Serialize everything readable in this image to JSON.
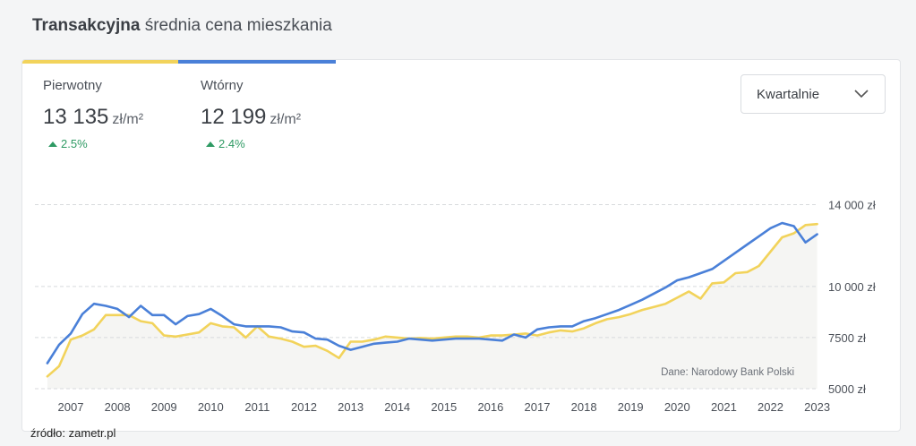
{
  "header": {
    "title_bold": "Transakcyjna",
    "title_rest": "średnia cena mieszkania"
  },
  "stats": [
    {
      "label": "Pierwotny",
      "value": "13 135",
      "unit": "zł/m²",
      "change": "2.5%",
      "color": "#f2d35b"
    },
    {
      "label": "Wtórny",
      "value": "12 199",
      "unit": "zł/m²",
      "change": "2.4%",
      "color": "#4a80d8"
    }
  ],
  "dropdown": {
    "selected": "Kwartalnie"
  },
  "source_note": "źródło: zametr.pl",
  "chart_data": {
    "type": "line",
    "annotation": "Dane: Narodowy Bank Polski",
    "x_tick_labels": [
      "2007",
      "2008",
      "2009",
      "2010",
      "2011",
      "2012",
      "2013",
      "2014",
      "2015",
      "2016",
      "2017",
      "2018",
      "2019",
      "2020",
      "2021",
      "2022",
      "2023"
    ],
    "y_ticks": [
      5000,
      7500,
      10000,
      14000
    ],
    "y_tick_labels": [
      "5000 zł",
      "7500 zł",
      "10 000 zł",
      "14 000 zł"
    ],
    "ylim": [
      5000,
      14000
    ],
    "grid": true,
    "series": [
      {
        "name": "Pierwotny",
        "color": "#f2d35b",
        "x": [
          2006.5,
          2006.75,
          2007,
          2007.25,
          2007.5,
          2007.75,
          2008,
          2008.25,
          2008.5,
          2008.75,
          2009,
          2009.25,
          2009.5,
          2009.75,
          2010,
          2010.25,
          2010.5,
          2010.75,
          2011,
          2011.25,
          2011.5,
          2011.75,
          2012,
          2012.25,
          2012.5,
          2012.75,
          2013,
          2013.25,
          2013.5,
          2013.75,
          2014,
          2014.25,
          2014.5,
          2014.75,
          2015,
          2015.25,
          2015.5,
          2015.75,
          2016,
          2016.25,
          2016.5,
          2016.75,
          2017,
          2017.25,
          2017.5,
          2017.75,
          2018,
          2018.25,
          2018.5,
          2018.75,
          2019,
          2019.25,
          2019.5,
          2019.75,
          2020,
          2020.25,
          2020.5,
          2020.75,
          2021,
          2021.25,
          2021.5,
          2021.75,
          2022,
          2022.25,
          2022.5,
          2022.75,
          2023
        ],
        "values": [
          5600,
          6100,
          7400,
          7600,
          7900,
          8600,
          8600,
          8600,
          8300,
          8200,
          7600,
          7550,
          7650,
          7750,
          8200,
          8050,
          8000,
          7500,
          8050,
          7550,
          7450,
          7300,
          7050,
          7100,
          6850,
          6500,
          7300,
          7300,
          7400,
          7550,
          7500,
          7450,
          7480,
          7450,
          7500,
          7550,
          7550,
          7500,
          7600,
          7600,
          7650,
          7700,
          7600,
          7750,
          7850,
          7800,
          7950,
          8200,
          8400,
          8500,
          8650,
          8850,
          9000,
          9150,
          9450,
          9750,
          9400,
          10150,
          10200,
          10650,
          10700,
          11000,
          11700,
          12400,
          12600,
          13000,
          13050
        ]
      },
      {
        "name": "Wtórny",
        "color": "#4a80d8",
        "x": [
          2006.5,
          2006.75,
          2007,
          2007.25,
          2007.5,
          2007.75,
          2008,
          2008.25,
          2008.5,
          2008.75,
          2009,
          2009.25,
          2009.5,
          2009.75,
          2010,
          2010.25,
          2010.5,
          2010.75,
          2011,
          2011.25,
          2011.5,
          2011.75,
          2012,
          2012.25,
          2012.5,
          2012.75,
          2013,
          2013.25,
          2013.5,
          2013.75,
          2014,
          2014.25,
          2014.5,
          2014.75,
          2015,
          2015.25,
          2015.5,
          2015.75,
          2016,
          2016.25,
          2016.5,
          2016.75,
          2017,
          2017.25,
          2017.5,
          2017.75,
          2018,
          2018.25,
          2018.5,
          2018.75,
          2019,
          2019.25,
          2019.5,
          2019.75,
          2020,
          2020.25,
          2020.5,
          2020.75,
          2021,
          2021.25,
          2021.5,
          2021.75,
          2022,
          2022.25,
          2022.5,
          2022.75,
          2023
        ],
        "values": [
          6250,
          7150,
          7700,
          8650,
          9150,
          9050,
          8900,
          8500,
          9050,
          8600,
          8600,
          8150,
          8550,
          8650,
          8900,
          8550,
          8150,
          8050,
          8050,
          8050,
          8000,
          7800,
          7750,
          7450,
          7400,
          7100,
          6900,
          7050,
          7200,
          7250,
          7300,
          7450,
          7400,
          7350,
          7400,
          7450,
          7450,
          7450,
          7400,
          7350,
          7650,
          7500,
          7900,
          8000,
          8050,
          8050,
          8300,
          8450,
          8650,
          8850,
          9100,
          9350,
          9650,
          9950,
          10300,
          10450,
          10650,
          10850,
          11250,
          11650,
          12050,
          12450,
          12850,
          13100,
          12950,
          12150,
          12550
        ]
      }
    ]
  }
}
